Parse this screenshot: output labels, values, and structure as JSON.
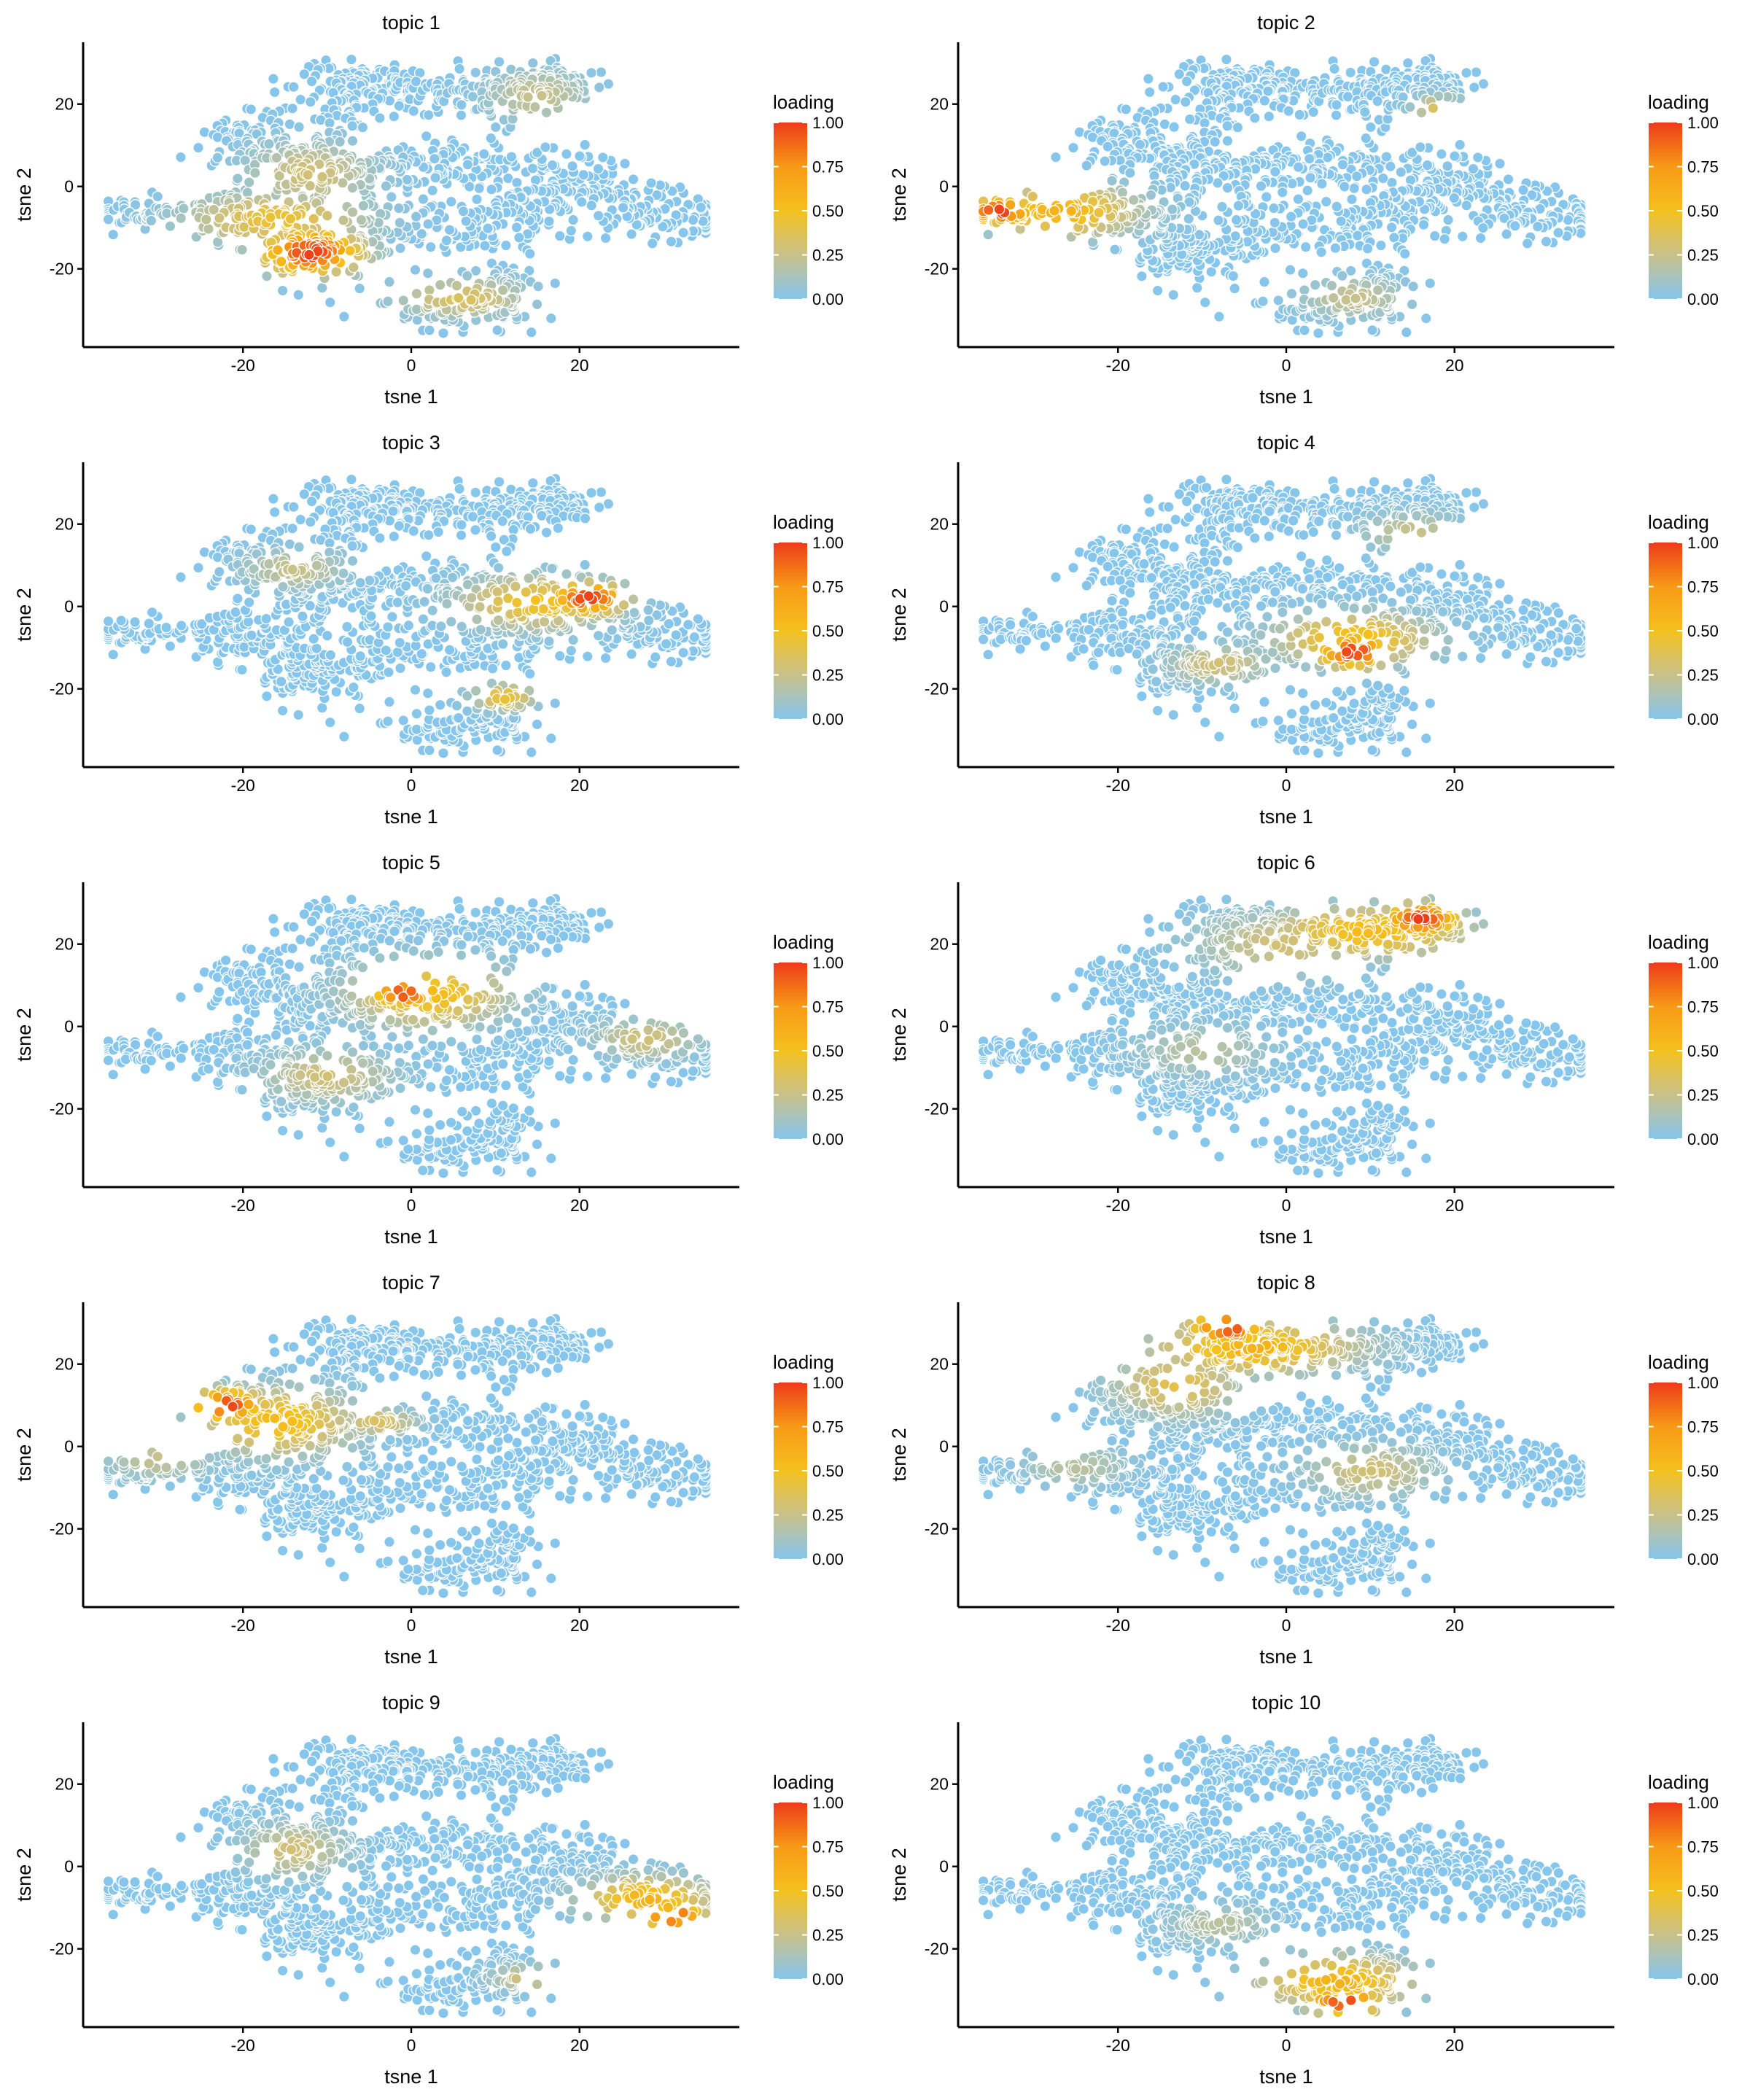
{
  "figure": {
    "layout": "5 rows x 2 columns of t-SNE scatter panels",
    "point_color_low": "#86c5ec",
    "point_color_high": "#ee3a1a"
  },
  "chart_data": [
    {
      "type": "scatter",
      "title": "topic 1",
      "xlabel": "tsne 1",
      "ylabel": "tsne 2",
      "xlim": [
        -39,
        39
      ],
      "ylim": [
        -39,
        35
      ],
      "x_ticks": [
        -20,
        0,
        20
      ],
      "x_tick_labels": [
        "-20",
        "0",
        "20"
      ],
      "y_ticks": [
        -20,
        0,
        20
      ],
      "y_tick_labels": [
        "-20",
        "0",
        "20"
      ],
      "legend": {
        "title": "loading",
        "position": "right",
        "ticks": [
          1.0,
          0.75,
          0.5,
          0.25,
          0.0
        ],
        "tick_labels": [
          "1.00",
          "0.75",
          "0.50",
          "0.25",
          "0.00"
        ],
        "colors": [
          "#86c5ec",
          "#c9c18a",
          "#f5c11e",
          "#f79a17",
          "#ee3a1a"
        ]
      },
      "hotspots": [
        {
          "x": -12,
          "y": -16,
          "sx": 4,
          "sy": 3.5,
          "level": 1.0
        },
        {
          "x": -16,
          "y": -8,
          "sx": 7,
          "sy": 4,
          "level": 0.45
        },
        {
          "x": 6,
          "y": -27,
          "sx": 5,
          "sy": 3,
          "level": 0.35
        },
        {
          "x": -12,
          "y": 3,
          "sx": 5,
          "sy": 5,
          "level": 0.3
        },
        {
          "x": 15,
          "y": 22,
          "sx": 4,
          "sy": 4,
          "level": 0.25
        }
      ]
    },
    {
      "type": "scatter",
      "title": "topic 2",
      "xlabel": "tsne 1",
      "ylabel": "tsne 2",
      "xlim": [
        -39,
        39
      ],
      "ylim": [
        -39,
        35
      ],
      "x_ticks": [
        -20,
        0,
        20
      ],
      "x_tick_labels": [
        "-20",
        "0",
        "20"
      ],
      "y_ticks": [
        -20,
        0,
        20
      ],
      "y_tick_labels": [
        "-20",
        "0",
        "20"
      ],
      "legend": {
        "title": "loading",
        "position": "right",
        "ticks": [
          1.0,
          0.75,
          0.5,
          0.25,
          0.0
        ],
        "tick_labels": [
          "1.00",
          "0.75",
          "0.50",
          "0.25",
          "0.00"
        ],
        "colors": [
          "#86c5ec",
          "#c9c18a",
          "#f5c11e",
          "#f79a17",
          "#ee3a1a"
        ]
      },
      "hotspots": [
        {
          "x": -34,
          "y": -6,
          "sx": 3,
          "sy": 2,
          "level": 1.0
        },
        {
          "x": -27,
          "y": -6,
          "sx": 6,
          "sy": 4,
          "level": 0.6
        },
        {
          "x": 8,
          "y": -27,
          "sx": 4,
          "sy": 3,
          "level": 0.25
        },
        {
          "x": 18,
          "y": 19,
          "sx": 2,
          "sy": 2,
          "level": 0.35
        }
      ]
    },
    {
      "type": "scatter",
      "title": "topic 3",
      "xlabel": "tsne 1",
      "ylabel": "tsne 2",
      "xlim": [
        -39,
        39
      ],
      "ylim": [
        -39,
        35
      ],
      "x_ticks": [
        -20,
        0,
        20
      ],
      "x_tick_labels": [
        "-20",
        "0",
        "20"
      ],
      "y_ticks": [
        -20,
        0,
        20
      ],
      "y_tick_labels": [
        "-20",
        "0",
        "20"
      ],
      "legend": {
        "title": "loading",
        "position": "right",
        "ticks": [
          1.0,
          0.75,
          0.5,
          0.25,
          0.0
        ],
        "tick_labels": [
          "1.00",
          "0.75",
          "0.50",
          "0.25",
          "0.00"
        ],
        "colors": [
          "#86c5ec",
          "#c9c18a",
          "#f5c11e",
          "#f79a17",
          "#ee3a1a"
        ]
      },
      "hotspots": [
        {
          "x": 21,
          "y": 2,
          "sx": 3,
          "sy": 2.5,
          "level": 1.0
        },
        {
          "x": 15,
          "y": 1,
          "sx": 6,
          "sy": 4,
          "level": 0.5
        },
        {
          "x": 11,
          "y": -22,
          "sx": 2.5,
          "sy": 2,
          "level": 0.45
        },
        {
          "x": -14,
          "y": 9,
          "sx": 4,
          "sy": 3,
          "level": 0.25
        }
      ]
    },
    {
      "type": "scatter",
      "title": "topic 4",
      "xlabel": "tsne 1",
      "ylabel": "tsne 2",
      "xlim": [
        -39,
        39
      ],
      "ylim": [
        -39,
        35
      ],
      "x_ticks": [
        -20,
        0,
        20
      ],
      "x_tick_labels": [
        "-20",
        "0",
        "20"
      ],
      "y_ticks": [
        -20,
        0,
        20
      ],
      "y_tick_labels": [
        "-20",
        "0",
        "20"
      ],
      "legend": {
        "title": "loading",
        "position": "right",
        "ticks": [
          1.0,
          0.75,
          0.5,
          0.25,
          0.0
        ],
        "tick_labels": [
          "1.00",
          "0.75",
          "0.50",
          "0.25",
          "0.00"
        ],
        "colors": [
          "#86c5ec",
          "#c9c18a",
          "#f5c11e",
          "#f79a17",
          "#ee3a1a"
        ]
      },
      "hotspots": [
        {
          "x": 8,
          "y": -11,
          "sx": 3,
          "sy": 2.5,
          "level": 1.0
        },
        {
          "x": 8,
          "y": -8,
          "sx": 6,
          "sy": 4,
          "level": 0.55
        },
        {
          "x": -8,
          "y": -14,
          "sx": 4,
          "sy": 3,
          "level": 0.3
        },
        {
          "x": 15,
          "y": 18,
          "sx": 4,
          "sy": 3,
          "level": 0.25
        }
      ]
    },
    {
      "type": "scatter",
      "title": "topic 5",
      "xlabel": "tsne 1",
      "ylabel": "tsne 2",
      "xlim": [
        -39,
        39
      ],
      "ylim": [
        -39,
        35
      ],
      "x_ticks": [
        -20,
        0,
        20
      ],
      "x_tick_labels": [
        "-20",
        "0",
        "20"
      ],
      "y_ticks": [
        -20,
        0,
        20
      ],
      "y_tick_labels": [
        "-20",
        "0",
        "20"
      ],
      "legend": {
        "title": "loading",
        "position": "right",
        "ticks": [
          1.0,
          0.75,
          0.5,
          0.25,
          0.0
        ],
        "tick_labels": [
          "1.00",
          "0.75",
          "0.50",
          "0.25",
          "0.00"
        ],
        "colors": [
          "#86c5ec",
          "#c9c18a",
          "#f5c11e",
          "#f79a17",
          "#ee3a1a"
        ]
      },
      "hotspots": [
        {
          "x": -1,
          "y": 8,
          "sx": 2.5,
          "sy": 2,
          "level": 1.0
        },
        {
          "x": 2,
          "y": 8,
          "sx": 6,
          "sy": 5,
          "level": 0.55
        },
        {
          "x": -10,
          "y": -12,
          "sx": 5,
          "sy": 4,
          "level": 0.3
        },
        {
          "x": 28,
          "y": -3,
          "sx": 4,
          "sy": 3,
          "level": 0.3
        }
      ]
    },
    {
      "type": "scatter",
      "title": "topic 6",
      "xlabel": "tsne 1",
      "ylabel": "tsne 2",
      "xlim": [
        -39,
        39
      ],
      "ylim": [
        -39,
        35
      ],
      "x_ticks": [
        -20,
        0,
        20
      ],
      "x_tick_labels": [
        "-20",
        "0",
        "20"
      ],
      "y_ticks": [
        -20,
        0,
        20
      ],
      "y_tick_labels": [
        "-20",
        "0",
        "20"
      ],
      "legend": {
        "title": "loading",
        "position": "right",
        "ticks": [
          1.0,
          0.75,
          0.5,
          0.25,
          0.0
        ],
        "tick_labels": [
          "1.00",
          "0.75",
          "0.50",
          "0.25",
          "0.00"
        ],
        "colors": [
          "#86c5ec",
          "#c9c18a",
          "#f5c11e",
          "#f79a17",
          "#ee3a1a"
        ]
      },
      "hotspots": [
        {
          "x": 16,
          "y": 26,
          "sx": 3,
          "sy": 2.5,
          "level": 1.0
        },
        {
          "x": 10,
          "y": 23,
          "sx": 8,
          "sy": 4,
          "level": 0.55
        },
        {
          "x": 0,
          "y": 20,
          "sx": 7,
          "sy": 5,
          "level": 0.3
        },
        {
          "x": -10,
          "y": -6,
          "sx": 5,
          "sy": 4,
          "level": 0.2
        }
      ]
    },
    {
      "type": "scatter",
      "title": "topic 7",
      "xlabel": "tsne 1",
      "ylabel": "tsne 2",
      "xlim": [
        -39,
        39
      ],
      "ylim": [
        -39,
        35
      ],
      "x_ticks": [
        -20,
        0,
        20
      ],
      "x_tick_labels": [
        "-20",
        "0",
        "20"
      ],
      "y_ticks": [
        -20,
        0,
        20
      ],
      "y_tick_labels": [
        "-20",
        "0",
        "20"
      ],
      "legend": {
        "title": "loading",
        "position": "right",
        "ticks": [
          1.0,
          0.75,
          0.5,
          0.25,
          0.0
        ],
        "tick_labels": [
          "1.00",
          "0.75",
          "0.50",
          "0.25",
          "0.00"
        ],
        "colors": [
          "#86c5ec",
          "#c9c18a",
          "#f5c11e",
          "#f79a17",
          "#ee3a1a"
        ]
      },
      "hotspots": [
        {
          "x": -22,
          "y": 10,
          "sx": 3,
          "sy": 2.5,
          "level": 1.0
        },
        {
          "x": -16,
          "y": 6,
          "sx": 6,
          "sy": 5,
          "level": 0.55
        },
        {
          "x": -4,
          "y": 6,
          "sx": 3,
          "sy": 2,
          "level": 0.35
        },
        {
          "x": -30,
          "y": -3,
          "sx": 4,
          "sy": 3,
          "level": 0.25
        }
      ]
    },
    {
      "type": "scatter",
      "title": "topic 8",
      "xlabel": "tsne 1",
      "ylabel": "tsne 2",
      "xlim": [
        -39,
        39
      ],
      "ylim": [
        -39,
        35
      ],
      "x_ticks": [
        -20,
        0,
        20
      ],
      "x_tick_labels": [
        "-20",
        "0",
        "20"
      ],
      "y_ticks": [
        -20,
        0,
        20
      ],
      "y_tick_labels": [
        "-20",
        "0",
        "20"
      ],
      "legend": {
        "title": "loading",
        "position": "right",
        "ticks": [
          1.0,
          0.75,
          0.5,
          0.25,
          0.0
        ],
        "tick_labels": [
          "1.00",
          "0.75",
          "0.50",
          "0.25",
          "0.00"
        ],
        "colors": [
          "#86c5ec",
          "#c9c18a",
          "#f5c11e",
          "#f79a17",
          "#ee3a1a"
        ]
      },
      "hotspots": [
        {
          "x": -7,
          "y": 29,
          "sx": 3,
          "sy": 2.5,
          "level": 1.0
        },
        {
          "x": -4,
          "y": 24,
          "sx": 8,
          "sy": 4,
          "level": 0.6
        },
        {
          "x": -13,
          "y": 15,
          "sx": 5,
          "sy": 5,
          "level": 0.4
        },
        {
          "x": 10,
          "y": -6,
          "sx": 5,
          "sy": 4,
          "level": 0.3
        },
        {
          "x": -25,
          "y": -5,
          "sx": 4,
          "sy": 3,
          "level": 0.2
        }
      ]
    },
    {
      "type": "scatter",
      "title": "topic 9",
      "xlabel": "tsne 1",
      "ylabel": "tsne 2",
      "xlim": [
        -39,
        39
      ],
      "ylim": [
        -39,
        35
      ],
      "x_ticks": [
        -20,
        0,
        20
      ],
      "x_tick_labels": [
        "-20",
        "0",
        "20"
      ],
      "y_ticks": [
        -20,
        0,
        20
      ],
      "y_tick_labels": [
        "-20",
        "0",
        "20"
      ],
      "legend": {
        "title": "loading",
        "position": "right",
        "ticks": [
          1.0,
          0.75,
          0.5,
          0.25,
          0.0
        ],
        "tick_labels": [
          "1.00",
          "0.75",
          "0.50",
          "0.25",
          "0.00"
        ],
        "colors": [
          "#86c5ec",
          "#c9c18a",
          "#f5c11e",
          "#f79a17",
          "#ee3a1a"
        ]
      },
      "hotspots": [
        {
          "x": 31,
          "y": -12,
          "sx": 2.5,
          "sy": 2,
          "level": 1.0
        },
        {
          "x": 28,
          "y": -8,
          "sx": 5,
          "sy": 3.5,
          "level": 0.6
        },
        {
          "x": -14,
          "y": 4,
          "sx": 4,
          "sy": 4,
          "level": 0.3
        },
        {
          "x": 14,
          "y": -27,
          "sx": 3,
          "sy": 2,
          "level": 0.3
        }
      ]
    },
    {
      "type": "scatter",
      "title": "topic 10",
      "xlabel": "tsne 1",
      "ylabel": "tsne 2",
      "xlim": [
        -39,
        39
      ],
      "ylim": [
        -39,
        35
      ],
      "x_ticks": [
        -20,
        0,
        20
      ],
      "x_tick_labels": [
        "-20",
        "0",
        "20"
      ],
      "y_ticks": [
        -20,
        0,
        20
      ],
      "y_tick_labels": [
        "-20",
        "0",
        "20"
      ],
      "legend": {
        "title": "loading",
        "position": "right",
        "ticks": [
          1.0,
          0.75,
          0.5,
          0.25,
          0.0
        ],
        "tick_labels": [
          "1.00",
          "0.75",
          "0.50",
          "0.25",
          "0.00"
        ],
        "colors": [
          "#86c5ec",
          "#c9c18a",
          "#f5c11e",
          "#f79a17",
          "#ee3a1a"
        ]
      },
      "hotspots": [
        {
          "x": 7,
          "y": -33,
          "sx": 3,
          "sy": 2,
          "level": 1.0
        },
        {
          "x": 6,
          "y": -28,
          "sx": 6,
          "sy": 4,
          "level": 0.6
        },
        {
          "x": -8,
          "y": -14,
          "sx": 4,
          "sy": 3,
          "level": 0.2
        }
      ]
    }
  ]
}
